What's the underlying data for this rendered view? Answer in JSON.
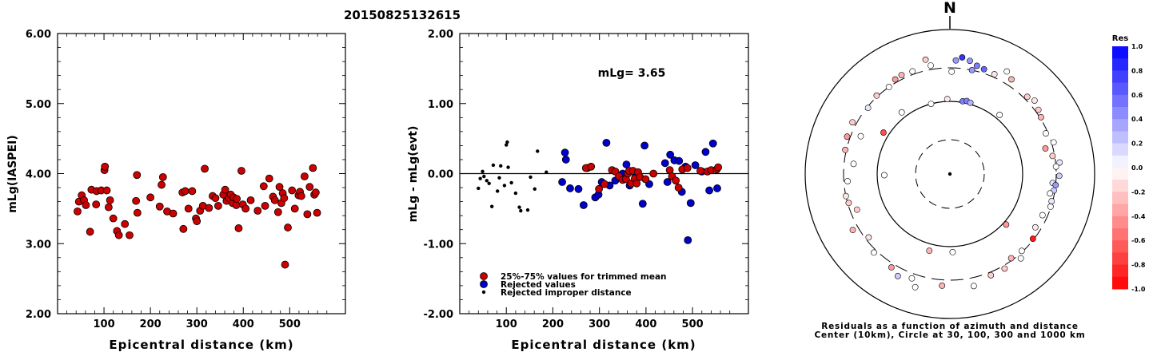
{
  "title": "20150825132615",
  "chart_data": [
    {
      "type": "scatter",
      "ylabel": "mLg(IASPEI)",
      "xlabel": "Epicentral distance (km)",
      "xlim": [
        0,
        620
      ],
      "ylim": [
        2.0,
        6.0
      ],
      "x_ticks": [
        "100",
        "200",
        "300",
        "400",
        "500"
      ],
      "y_ticks": [
        "2.00",
        "3.00",
        "4.00",
        "5.00",
        "6.00"
      ],
      "points": [
        [
          43,
          3.46
        ],
        [
          46,
          3.6
        ],
        [
          52,
          3.69
        ],
        [
          57,
          3.62
        ],
        [
          61,
          3.55
        ],
        [
          70,
          3.17
        ],
        [
          73,
          3.77
        ],
        [
          83,
          3.56
        ],
        [
          84,
          3.75
        ],
        [
          94,
          3.76
        ],
        [
          101,
          4.05
        ],
        [
          102,
          4.1
        ],
        [
          106,
          3.76
        ],
        [
          110,
          3.52
        ],
        [
          113,
          3.62
        ],
        [
          120,
          3.36
        ],
        [
          128,
          3.18
        ],
        [
          132,
          3.12
        ],
        [
          145,
          3.28
        ],
        [
          155,
          3.12
        ],
        [
          169,
          3.61
        ],
        [
          171,
          3.98
        ],
        [
          172,
          3.44
        ],
        [
          200,
          3.66
        ],
        [
          220,
          3.53
        ],
        [
          224,
          3.84
        ],
        [
          227,
          3.95
        ],
        [
          236,
          3.46
        ],
        [
          249,
          3.43
        ],
        [
          269,
          3.73
        ],
        [
          271,
          3.21
        ],
        [
          275,
          3.75
        ],
        [
          282,
          3.5
        ],
        [
          290,
          3.75
        ],
        [
          298,
          3.36
        ],
        [
          300,
          3.32
        ],
        [
          307,
          3.47
        ],
        [
          313,
          3.54
        ],
        [
          317,
          4.07
        ],
        [
          326,
          3.51
        ],
        [
          334,
          3.68
        ],
        [
          340,
          3.65
        ],
        [
          346,
          3.54
        ],
        [
          357,
          3.7
        ],
        [
          361,
          3.77
        ],
        [
          364,
          3.61
        ],
        [
          369,
          3.65
        ],
        [
          373,
          3.7
        ],
        [
          377,
          3.58
        ],
        [
          379,
          3.66
        ],
        [
          385,
          3.55
        ],
        [
          386,
          3.64
        ],
        [
          390,
          3.22
        ],
        [
          396,
          4.04
        ],
        [
          399,
          3.56
        ],
        [
          405,
          3.5
        ],
        [
          416,
          3.62
        ],
        [
          431,
          3.47
        ],
        [
          444,
          3.82
        ],
        [
          447,
          3.54
        ],
        [
          456,
          3.93
        ],
        [
          464,
          3.67
        ],
        [
          468,
          3.62
        ],
        [
          475,
          3.45
        ],
        [
          478,
          3.81
        ],
        [
          482,
          3.58
        ],
        [
          485,
          3.72
        ],
        [
          488,
          3.65
        ],
        [
          490,
          2.7
        ],
        [
          496,
          3.23
        ],
        [
          505,
          3.76
        ],
        [
          511,
          3.5
        ],
        [
          519,
          3.69
        ],
        [
          522,
          3.74
        ],
        [
          525,
          3.68
        ],
        [
          532,
          3.96
        ],
        [
          538,
          3.42
        ],
        [
          543,
          3.81
        ],
        [
          550,
          4.08
        ],
        [
          553,
          3.7
        ],
        [
          556,
          3.73
        ],
        [
          559,
          3.44
        ]
      ],
      "point_color": "#cc0000"
    },
    {
      "type": "scatter",
      "ylabel": "mLg - mLg(evt)",
      "xlabel": "Epicentral distance (km)",
      "xlim": [
        0,
        620
      ],
      "ylim": [
        -2.0,
        2.0
      ],
      "x_ticks": [
        "100",
        "200",
        "300",
        "400",
        "500"
      ],
      "y_ticks": [
        "-2.00",
        "-1.00",
        "0.00",
        "1.00",
        "2.00"
      ],
      "annotation": "mLg= 3.65",
      "zero_line": true,
      "series": [
        {
          "name": "25%-75% values for trimmed mean",
          "color": "#cc0000",
          "points": [
            [
              271,
              0.08
            ],
            [
              282,
              0.1
            ],
            [
              299,
              -0.22
            ],
            [
              311,
              -0.15
            ],
            [
              327,
              0.05
            ],
            [
              334,
              0.03
            ],
            [
              342,
              -0.04
            ],
            [
              350,
              -0.09
            ],
            [
              357,
              -0.08
            ],
            [
              361,
              0.0
            ],
            [
              364,
              0.04
            ],
            [
              368,
              -0.14
            ],
            [
              372,
              0.04
            ],
            [
              376,
              -0.07
            ],
            [
              380,
              -0.14
            ],
            [
              383,
              0.02
            ],
            [
              387,
              -0.05
            ],
            [
              399,
              -0.08
            ],
            [
              416,
              0.0
            ],
            [
              451,
              0.05
            ],
            [
              456,
              -0.04
            ],
            [
              464,
              -0.1
            ],
            [
              470,
              -0.2
            ],
            [
              478,
              0.06
            ],
            [
              489,
              0.08
            ],
            [
              517,
              0.04
            ],
            [
              532,
              0.03
            ],
            [
              540,
              0.05
            ],
            [
              552,
              0.06
            ],
            [
              555,
              0.09
            ]
          ]
        },
        {
          "name": "Rejected values",
          "color": "#0000cc",
          "points": [
            [
              220,
              -0.12
            ],
            [
              226,
              0.3
            ],
            [
              228,
              0.2
            ],
            [
              237,
              -0.21
            ],
            [
              255,
              -0.22
            ],
            [
              266,
              -0.45
            ],
            [
              274,
              0.08
            ],
            [
              291,
              -0.34
            ],
            [
              298,
              -0.3
            ],
            [
              305,
              -0.12
            ],
            [
              315,
              0.44
            ],
            [
              322,
              -0.17
            ],
            [
              334,
              -0.1
            ],
            [
              350,
              0.0
            ],
            [
              358,
              0.13
            ],
            [
              365,
              -0.17
            ],
            [
              378,
              -0.03
            ],
            [
              393,
              -0.43
            ],
            [
              397,
              0.4
            ],
            [
              407,
              -0.15
            ],
            [
              441,
              0.15
            ],
            [
              446,
              -0.12
            ],
            [
              452,
              0.27
            ],
            [
              461,
              0.19
            ],
            [
              471,
              0.18
            ],
            [
              477,
              -0.26
            ],
            [
              485,
              0.1
            ],
            [
              490,
              -0.95
            ],
            [
              496,
              -0.42
            ],
            [
              506,
              0.12
            ],
            [
              520,
              0.03
            ],
            [
              528,
              0.31
            ],
            [
              536,
              -0.24
            ],
            [
              544,
              0.43
            ],
            [
              553,
              -0.21
            ]
          ]
        },
        {
          "name": "Rejected improper distance",
          "color": "#000000",
          "points": [
            [
              40,
              -0.21
            ],
            [
              44,
              -0.07
            ],
            [
              49,
              0.03
            ],
            [
              52,
              -0.04
            ],
            [
              58,
              -0.1
            ],
            [
              63,
              -0.14
            ],
            [
              69,
              -0.47
            ],
            [
              72,
              0.12
            ],
            [
              81,
              -0.25
            ],
            [
              85,
              -0.06
            ],
            [
              88,
              0.11
            ],
            [
              96,
              -0.17
            ],
            [
              100,
              0.41
            ],
            [
              102,
              0.45
            ],
            [
              104,
              0.09
            ],
            [
              111,
              -0.13
            ],
            [
              120,
              -0.28
            ],
            [
              128,
              -0.48
            ],
            [
              131,
              -0.53
            ],
            [
              146,
              -0.52
            ],
            [
              152,
              -0.05
            ],
            [
              161,
              -0.22
            ],
            [
              167,
              0.32
            ],
            [
              186,
              0.02
            ]
          ]
        }
      ]
    },
    {
      "type": "polar",
      "north_label": "N",
      "caption_line1": "Residuals as a function of azimuth and distance",
      "caption_line2": "Center (10km), Circle at 30, 100, 300 and 1000 km",
      "rings_km": [
        30,
        100,
        300,
        1000
      ],
      "colorbar": {
        "title": "Res",
        "ticks": [
          "1.0",
          "0.8",
          "0.6",
          "0.4",
          "0.2",
          "0.0",
          "-0.2",
          "-0.4",
          "-0.6",
          "-0.8",
          "-1.0"
        ],
        "positive_color": "#0000ff",
        "negative_color": "#ff0000"
      },
      "points": [
        {
          "az": 6,
          "dist_km": 425,
          "res": 0.8
        },
        {
          "az": 3,
          "dist_km": 380,
          "res": 0.4
        },
        {
          "az": 10,
          "dist_km": 395,
          "res": 0.4
        },
        {
          "az": 14,
          "dist_km": 355,
          "res": 0.5
        },
        {
          "az": 18,
          "dist_km": 340,
          "res": 0.6
        },
        {
          "az": 12,
          "dist_km": 300,
          "res": 0.4
        },
        {
          "az": 24,
          "dist_km": 330,
          "res": -0.1
        },
        {
          "az": 1,
          "dist_km": 265,
          "res": 0.0
        },
        {
          "az": 350,
          "dist_km": 340,
          "res": 0.0
        },
        {
          "az": 358,
          "dist_km": 108,
          "res": -0.1
        },
        {
          "az": 10,
          "dist_km": 104,
          "res": 0.5
        },
        {
          "az": 13,
          "dist_km": 108,
          "res": 0.5
        },
        {
          "az": 16,
          "dist_km": 105,
          "res": 0.3
        },
        {
          "az": 40,
          "dist_km": 116,
          "res": 0.0
        },
        {
          "az": 29,
          "dist_km": 425,
          "res": 0.0
        },
        {
          "az": 33,
          "dist_km": 370,
          "res": -0.3
        },
        {
          "az": 45,
          "dist_km": 330,
          "res": -0.2
        },
        {
          "az": 49,
          "dist_km": 360,
          "res": -0.1
        },
        {
          "az": 54,
          "dist_km": 330,
          "res": -0.2
        },
        {
          "az": 58,
          "dist_km": 310,
          "res": -0.3
        },
        {
          "az": 67,
          "dist_km": 280,
          "res": 0.0
        },
        {
          "az": 73,
          "dist_km": 320,
          "res": 0.0
        },
        {
          "az": 75,
          "dist_km": 235,
          "res": -0.4
        },
        {
          "az": 80,
          "dist_km": 280,
          "res": -0.2
        },
        {
          "az": 84,
          "dist_km": 340,
          "res": 0.1
        },
        {
          "az": 86,
          "dist_km": 300,
          "res": 0.0
        },
        {
          "az": 91,
          "dist_km": 330,
          "res": 0.2
        },
        {
          "az": 95,
          "dist_km": 270,
          "res": 0.1
        },
        {
          "az": 96,
          "dist_km": 300,
          "res": 0.4
        },
        {
          "az": 99,
          "dist_km": 290,
          "res": 0.2
        },
        {
          "az": 101,
          "dist_km": 260,
          "res": 0.0
        },
        {
          "az": 105,
          "dist_km": 290,
          "res": 0.1
        },
        {
          "az": 108,
          "dist_km": 295,
          "res": 0.0
        },
        {
          "az": 114,
          "dist_km": 255,
          "res": 0.0
        },
        {
          "az": 122,
          "dist_km": 250,
          "res": -0.1
        },
        {
          "az": 128,
          "dist_km": 290,
          "res": -0.9
        },
        {
          "az": 132,
          "dist_km": 110,
          "res": -0.4
        },
        {
          "az": 137,
          "dist_km": 290,
          "res": 0.0
        },
        {
          "az": 140,
          "dist_km": 340,
          "res": 0.0
        },
        {
          "az": 144,
          "dist_km": 280,
          "res": -0.3
        },
        {
          "az": 150,
          "dist_km": 330,
          "res": -0.2
        },
        {
          "az": 158,
          "dist_km": 330,
          "res": -0.2
        },
        {
          "az": 168,
          "dist_km": 390,
          "res": 0.0
        },
        {
          "az": 178,
          "dist_km": 120,
          "res": 0.0
        },
        {
          "az": 184,
          "dist_km": 360,
          "res": -0.3
        },
        {
          "az": 197,
          "dist_km": 440,
          "res": 0.0
        },
        {
          "az": 195,
          "dist_km": 125,
          "res": -0.3
        },
        {
          "az": 200,
          "dist_km": 350,
          "res": 0.0
        },
        {
          "az": 207,
          "dist_km": 390,
          "res": 0.2
        },
        {
          "az": 212,
          "dist_km": 340,
          "res": -0.4
        },
        {
          "az": 224,
          "dist_km": 330,
          "res": 0.0
        },
        {
          "az": 232,
          "dist_km": 270,
          "res": -0.1
        },
        {
          "az": 240,
          "dist_km": 360,
          "res": -0.3
        },
        {
          "az": 249,
          "dist_km": 240,
          "res": -0.2
        },
        {
          "az": 254,
          "dist_km": 290,
          "res": -0.2
        },
        {
          "az": 258,
          "dist_km": 300,
          "res": -0.1
        },
        {
          "az": 266,
          "dist_km": 265,
          "res": 0.0
        },
        {
          "az": 269,
          "dist_km": 80,
          "res": 0.0
        },
        {
          "az": 276,
          "dist_km": 220,
          "res": 0.0
        },
        {
          "az": 283,
          "dist_km": 310,
          "res": -0.3
        },
        {
          "az": 290,
          "dist_km": 330,
          "res": -0.4
        },
        {
          "az": 293,
          "dist_km": 220,
          "res": 0.0
        },
        {
          "az": 298,
          "dist_km": 340,
          "res": -0.2
        },
        {
          "az": 302,
          "dist_km": 120,
          "res": -0.7
        },
        {
          "az": 309,
          "dist_km": 290,
          "res": 0.1
        },
        {
          "az": 317,
          "dist_km": 310,
          "res": -0.2
        },
        {
          "az": 322,
          "dist_km": 120,
          "res": 0.0
        },
        {
          "az": 325,
          "dist_km": 300,
          "res": 0.0
        },
        {
          "az": 330,
          "dist_km": 330,
          "res": -0.4
        },
        {
          "az": 334,
          "dist_km": 340,
          "res": -0.3
        },
        {
          "az": 340,
          "dist_km": 330,
          "res": 0.0
        },
        {
          "az": 345,
          "dist_km": 100,
          "res": 0.0
        },
        {
          "az": 348,
          "dist_km": 420,
          "res": -0.2
        }
      ]
    }
  ]
}
